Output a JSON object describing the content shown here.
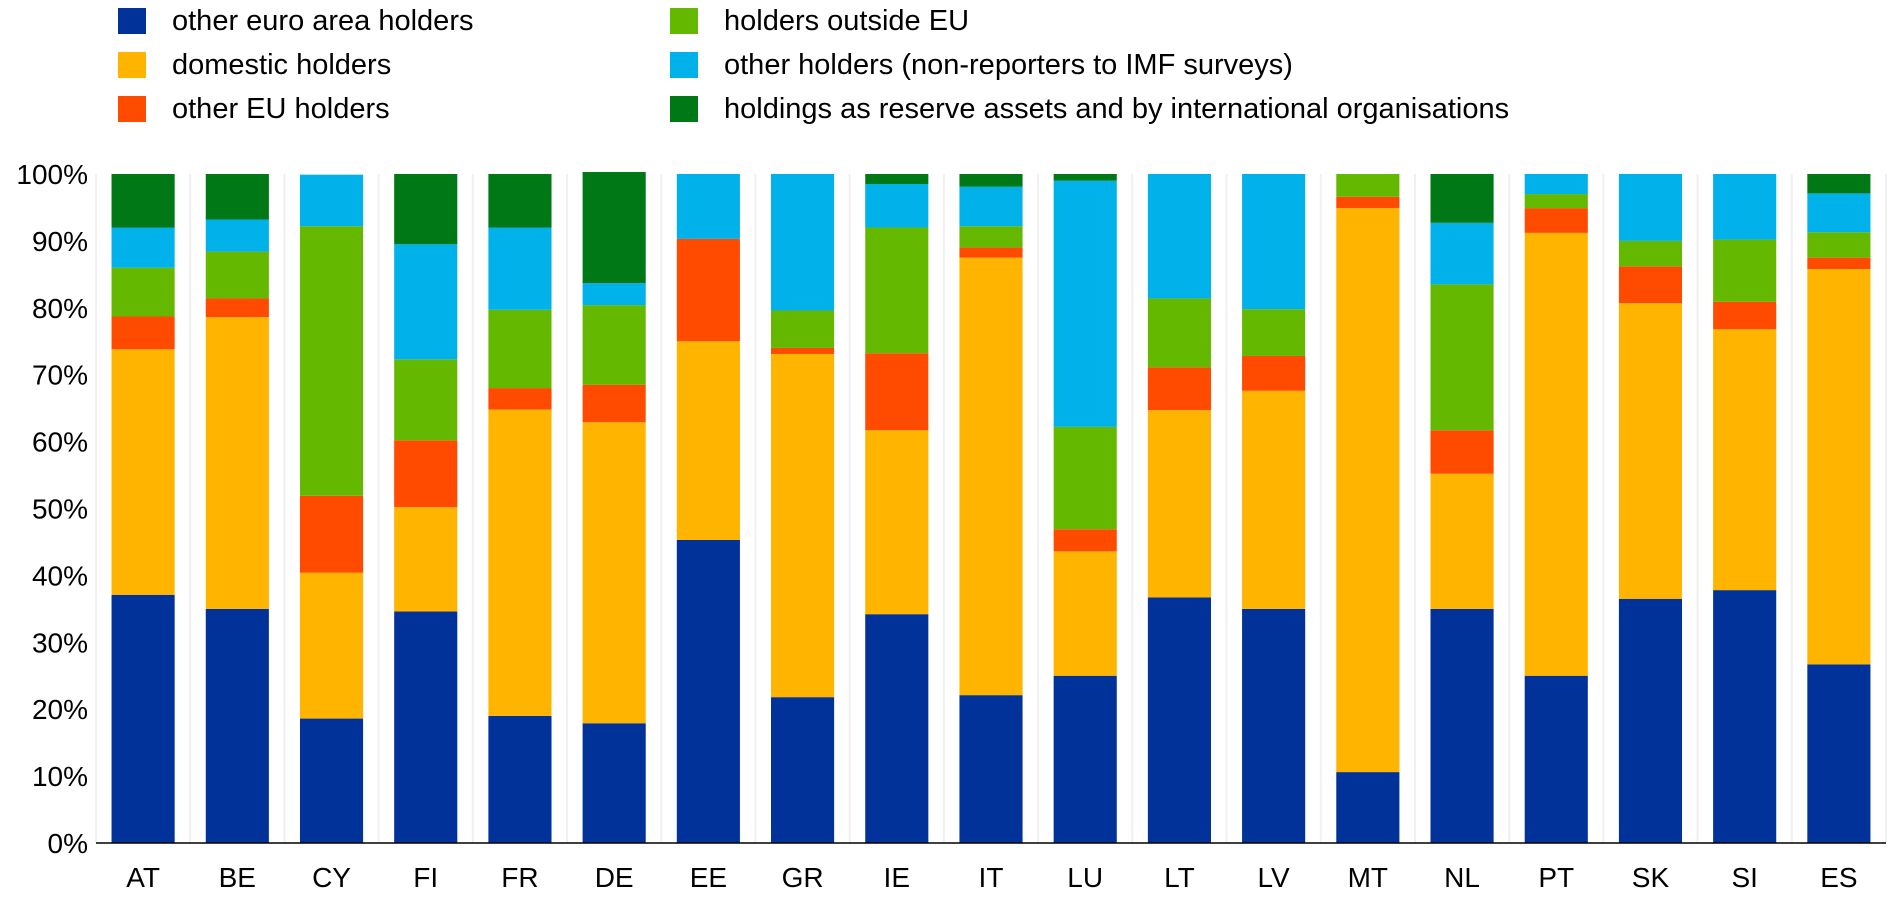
{
  "chart_data": {
    "type": "bar",
    "stacked": true,
    "title": "",
    "xlabel": "",
    "ylabel": "",
    "ylim": [
      0,
      100
    ],
    "y_ticks": [
      "0%",
      "10%",
      "20%",
      "30%",
      "40%",
      "50%",
      "60%",
      "70%",
      "80%",
      "90%",
      "100%"
    ],
    "grid": false,
    "legend_position": "top",
    "categories": [
      "AT",
      "BE",
      "CY",
      "FI",
      "FR",
      "DE",
      "EE",
      "GR",
      "IE",
      "IT",
      "LU",
      "LT",
      "LV",
      "MT",
      "NL",
      "PT",
      "SK",
      "SI",
      "ES"
    ],
    "series": [
      {
        "name": "other euro area holders",
        "color": "#003299",
        "values": [
          37.1,
          35.0,
          18.6,
          34.6,
          19.0,
          17.9,
          45.3,
          21.8,
          34.2,
          22.1,
          25.0,
          36.7,
          35.0,
          10.6,
          35.0,
          25.0,
          36.5,
          37.8,
          26.7
        ]
      },
      {
        "name": "domestic holders",
        "color": "#FFB400",
        "values": [
          36.7,
          43.6,
          21.8,
          15.6,
          45.8,
          45.0,
          29.7,
          51.3,
          27.5,
          65.4,
          18.6,
          28.0,
          32.6,
          84.3,
          20.2,
          66.2,
          44.2,
          39.0,
          59.1
        ]
      },
      {
        "name": "other EU holders",
        "color": "#FF4B00",
        "values": [
          4.9,
          2.8,
          11.5,
          10.0,
          3.2,
          5.6,
          15.3,
          0.9,
          11.5,
          1.5,
          3.3,
          6.4,
          5.2,
          1.7,
          6.5,
          3.7,
          5.5,
          4.1,
          1.7
        ]
      },
      {
        "name": "holders outside EU",
        "color": "#65B800",
        "values": [
          7.3,
          7.0,
          40.3,
          12.1,
          11.7,
          11.9,
          0.0,
          5.6,
          18.8,
          3.2,
          15.3,
          10.3,
          7.0,
          3.4,
          21.8,
          2.1,
          3.8,
          9.3,
          3.8
        ]
      },
      {
        "name": "other holders (non-reporters to IMF surveys)",
        "color": "#00B1EA",
        "values": [
          6.0,
          4.8,
          7.7,
          17.2,
          12.3,
          3.3,
          9.7,
          20.4,
          6.5,
          5.9,
          36.8,
          18.6,
          20.2,
          0.0,
          9.2,
          3.0,
          10.0,
          9.8,
          5.8
        ]
      },
      {
        "name": "holdings as reserve assets and by international organisations",
        "color": "#007816",
        "values": [
          8.0,
          6.8,
          0.0,
          10.5,
          8.0,
          16.6,
          0.0,
          0.0,
          1.5,
          1.9,
          1.0,
          0.0,
          0.0,
          0.0,
          7.3,
          0.0,
          0.0,
          0.0,
          2.9
        ]
      }
    ],
    "legend_layout": [
      [
        "other euro area holders",
        "holders outside EU"
      ],
      [
        "domestic holders",
        "other holders (non-reporters to IMF surveys)"
      ],
      [
        "other EU holders",
        "holdings as reserve assets and by international organisations"
      ]
    ]
  }
}
